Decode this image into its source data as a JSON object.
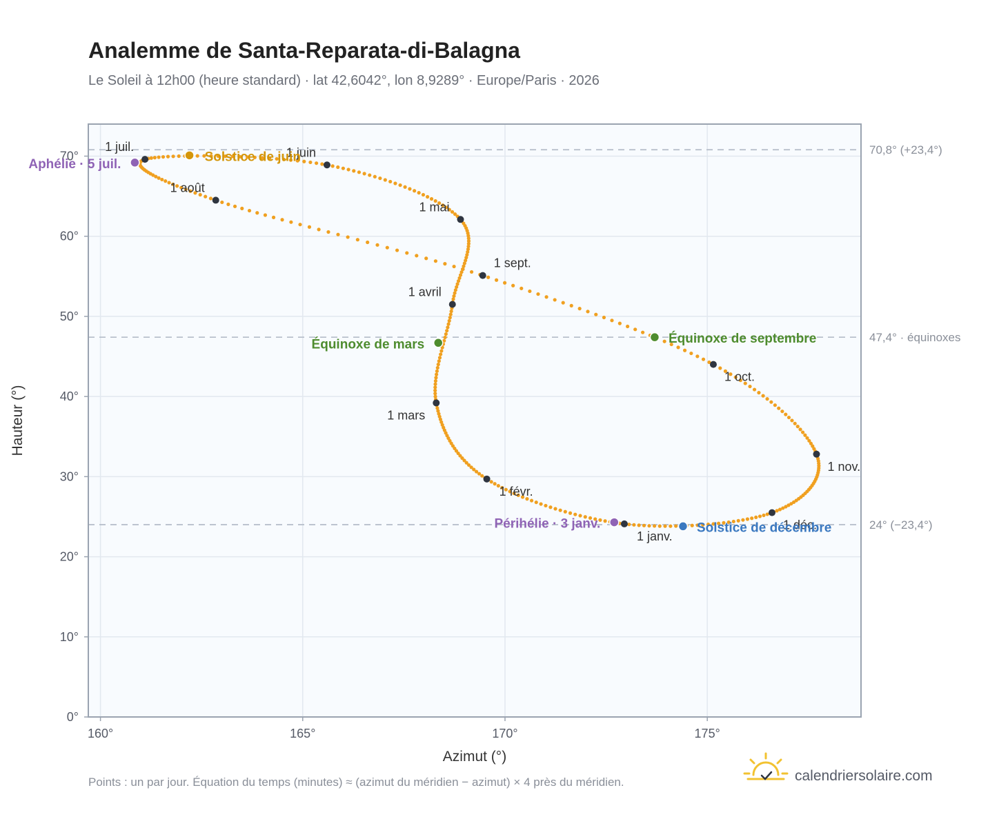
{
  "header": {
    "title": "Analemme de Santa-Reparata-di-Balagna",
    "subtitle": "Le Soleil à 12h00 (heure standard) · lat 42,6042°, lon 8,9289° · Europe/Paris · 2026"
  },
  "footer": {
    "note": "Points : un par jour. Équation du temps (minutes) ≈ (azimut du méridien − azimut) × 4 près du méridien.",
    "brand": "calendriersolaire.com"
  },
  "colors": {
    "curve": "#f0a020",
    "month_dot": "#2f3540",
    "june_solstice": "#d4960a",
    "december_solstice": "#3a78c0",
    "equinox": "#4e8c2e",
    "apsis": "#8f63b5",
    "plot_bg": "#f8fbfe",
    "grid": "#e2e8ef",
    "frame": "#9aa3b0",
    "ref_line": "#b8c0cc"
  },
  "chart_data": {
    "type": "scatter",
    "xlabel": "Azimut (°)",
    "ylabel": "Hauteur (°)",
    "xlim": [
      159.7,
      178.8
    ],
    "ylim": [
      0,
      74
    ],
    "x_ticks": [
      {
        "value": 160,
        "label": "160°"
      },
      {
        "value": 165,
        "label": "165°"
      },
      {
        "value": 170,
        "label": "170°"
      },
      {
        "value": 175,
        "label": "175°"
      }
    ],
    "y_ticks": [
      {
        "value": 0,
        "label": "0°"
      },
      {
        "value": 10,
        "label": "10°"
      },
      {
        "value": 20,
        "label": "20°"
      },
      {
        "value": 30,
        "label": "30°"
      },
      {
        "value": 40,
        "label": "40°"
      },
      {
        "value": 50,
        "label": "50°"
      },
      {
        "value": 60,
        "label": "60°"
      },
      {
        "value": 70,
        "label": "70°"
      }
    ],
    "grid": true,
    "reference_lines": [
      {
        "y": 70.8,
        "label": "70,8° (+23,4°)"
      },
      {
        "y": 47.4,
        "label": "47,4° · équinoxes"
      },
      {
        "y": 24.0,
        "label": "24° (−23,4°)"
      }
    ],
    "daily_points": {
      "description_label": "Points : un par jour",
      "anchors": [
        {
          "x": 172.95,
          "y": 24.1
        },
        {
          "x": 169.55,
          "y": 29.7
        },
        {
          "x": 168.3,
          "y": 39.2
        },
        {
          "x": 168.7,
          "y": 51.5
        },
        {
          "x": 168.9,
          "y": 62.1
        },
        {
          "x": 165.6,
          "y": 68.9
        },
        {
          "x": 161.1,
          "y": 69.6
        },
        {
          "x": 162.85,
          "y": 64.5
        },
        {
          "x": 169.45,
          "y": 55.1
        },
        {
          "x": 175.15,
          "y": 44.0
        },
        {
          "x": 177.7,
          "y": 32.8
        },
        {
          "x": 176.6,
          "y": 25.5
        },
        {
          "x": 172.95,
          "y": 24.1
        }
      ]
    },
    "month_markers": [
      {
        "label": "1 janv.",
        "x": 172.95,
        "y": 24.1,
        "anchor": "start",
        "dx": 18,
        "dy": 24
      },
      {
        "label": "1 févr.",
        "x": 169.55,
        "y": 29.7,
        "anchor": "start",
        "dx": 18,
        "dy": 24
      },
      {
        "label": "1 mars",
        "x": 168.3,
        "y": 39.2,
        "anchor": "end",
        "dx": -16,
        "dy": 24
      },
      {
        "label": "1 avril",
        "x": 168.7,
        "y": 51.5,
        "anchor": "end",
        "dx": -16,
        "dy": -12
      },
      {
        "label": "1 mai",
        "x": 168.9,
        "y": 62.1,
        "anchor": "end",
        "dx": -16,
        "dy": -12
      },
      {
        "label": "1 juin",
        "x": 165.6,
        "y": 68.9,
        "anchor": "end",
        "dx": -16,
        "dy": -12
      },
      {
        "label": "1 juil.",
        "x": 161.1,
        "y": 69.6,
        "anchor": "end",
        "dx": -16,
        "dy": -12
      },
      {
        "label": "1 août",
        "x": 162.85,
        "y": 64.5,
        "anchor": "end",
        "dx": -16,
        "dy": -12
      },
      {
        "label": "1 sept.",
        "x": 169.45,
        "y": 55.1,
        "anchor": "start",
        "dx": 16,
        "dy": -12
      },
      {
        "label": "1 oct.",
        "x": 175.15,
        "y": 44.0,
        "anchor": "start",
        "dx": 16,
        "dy": 24
      },
      {
        "label": "1 nov.",
        "x": 177.7,
        "y": 32.8,
        "anchor": "start",
        "dx": 16,
        "dy": 24
      },
      {
        "label": "1 déc.",
        "x": 176.6,
        "y": 25.5,
        "anchor": "start",
        "dx": 16,
        "dy": 24
      }
    ],
    "events": [
      {
        "label": "Solstice de juin",
        "x": 162.2,
        "y": 70.1,
        "color_key": "june_solstice",
        "anchor": "start",
        "dx": 22,
        "dy": 8
      },
      {
        "label": "Aphélie · 5 juil.",
        "x": 160.85,
        "y": 69.2,
        "color_key": "apsis",
        "anchor": "end",
        "dx": -20,
        "dy": 8
      },
      {
        "label": "Équinoxe de mars",
        "x": 168.35,
        "y": 46.7,
        "color_key": "equinox",
        "anchor": "end",
        "dx": -20,
        "dy": 8
      },
      {
        "label": "Équinoxe de septembre",
        "x": 173.7,
        "y": 47.4,
        "color_key": "equinox",
        "anchor": "start",
        "dx": 20,
        "dy": 8
      },
      {
        "label": "Périhélie · 3 janv.",
        "x": 172.7,
        "y": 24.3,
        "color_key": "apsis",
        "anchor": "end",
        "dx": -20,
        "dy": 8
      },
      {
        "label": "Solstice de décembre",
        "x": 174.4,
        "y": 23.8,
        "color_key": "december_solstice",
        "anchor": "start",
        "dx": 20,
        "dy": 8
      }
    ]
  }
}
